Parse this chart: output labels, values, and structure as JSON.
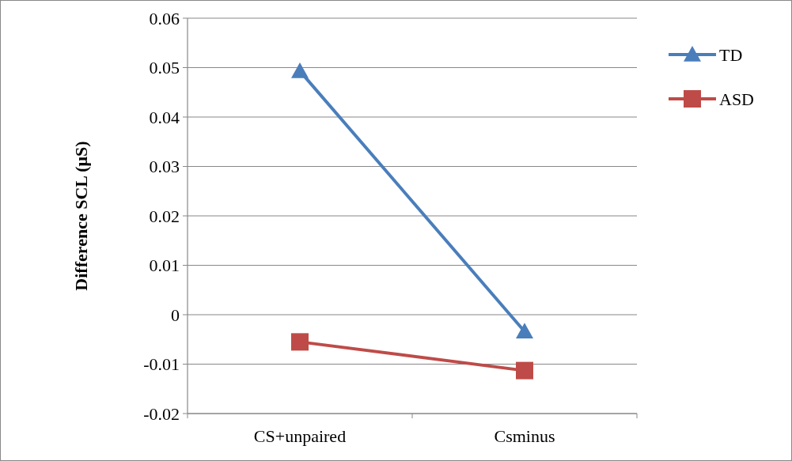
{
  "chart_data": {
    "type": "line",
    "ylabel": "Difference SCL (μS)",
    "categories": [
      "CS+unpaired",
      "Csminus"
    ],
    "series": [
      {
        "name": "TD",
        "color": "#4a7ebb",
        "marker": "triangle",
        "values": [
          0.0493,
          -0.0034
        ]
      },
      {
        "name": "ASD",
        "color": "#be4b48",
        "marker": "square",
        "values": [
          -0.0055,
          -0.0113
        ]
      }
    ],
    "ylim": [
      -0.02,
      0.06
    ],
    "yticks": [
      -0.02,
      -0.01,
      0,
      0.01,
      0.02,
      0.03,
      0.04,
      0.05,
      0.06
    ],
    "grid": "y",
    "legend": "right"
  }
}
